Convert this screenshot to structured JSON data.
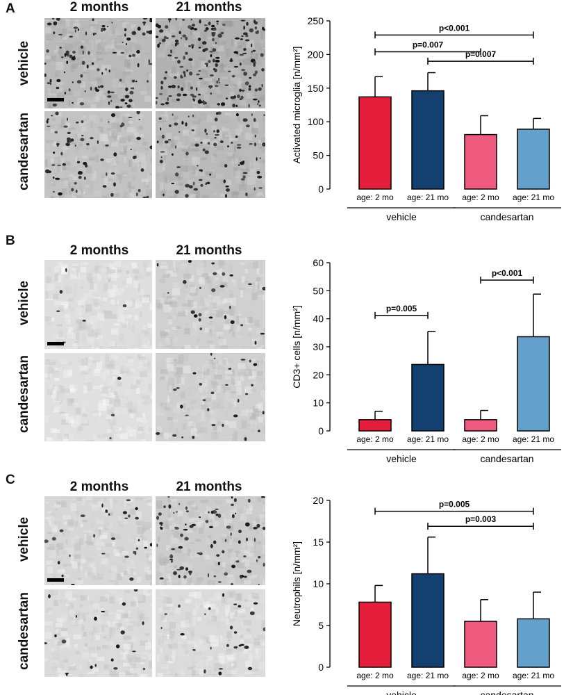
{
  "panels": [
    {
      "letter": "A",
      "col_labels": [
        "2 months",
        "21 months"
      ],
      "row_labels": [
        "vehicle",
        "candesartan"
      ],
      "micro_density": [
        {
          "intensity": 0.55,
          "dots": 110
        },
        {
          "intensity": 0.65,
          "dots": 190
        },
        {
          "intensity": 0.45,
          "dots": 70
        },
        {
          "intensity": 0.55,
          "dots": 90
        }
      ]
    },
    {
      "letter": "B",
      "col_labels": [
        "2 months",
        "21 months"
      ],
      "row_labels": [
        "vehicle",
        "candesartan"
      ],
      "micro_density": [
        {
          "intensity": 0.15,
          "dots": 6
        },
        {
          "intensity": 0.3,
          "dots": 25
        },
        {
          "intensity": 0.12,
          "dots": 3
        },
        {
          "intensity": 0.3,
          "dots": 30
        }
      ]
    },
    {
      "letter": "C",
      "col_labels": [
        "2 months",
        "21 months"
      ],
      "row_labels": [
        "vehicle",
        "candesartan"
      ],
      "micro_density": [
        {
          "intensity": 0.22,
          "dots": 28
        },
        {
          "intensity": 0.35,
          "dots": 90
        },
        {
          "intensity": 0.18,
          "dots": 20
        },
        {
          "intensity": 0.18,
          "dots": 25
        }
      ]
    }
  ],
  "chart_data": [
    {
      "type": "bar",
      "categories": [
        "age: 2 mo",
        "age: 21 mo",
        "age: 2 mo",
        "age: 21 mo"
      ],
      "groups": [
        {
          "label": "vehicle",
          "members": [
            0,
            1
          ]
        },
        {
          "label": "candesartan",
          "members": [
            2,
            3
          ]
        }
      ],
      "values": [
        137,
        146,
        81,
        89
      ],
      "errors": [
        30,
        27,
        28,
        16
      ],
      "colors": [
        "#e41e3b",
        "#14406f",
        "#ef5b7f",
        "#64a0cc"
      ],
      "ylabel": "Activated microglia [n/mm²]",
      "ylim": [
        0,
        250
      ],
      "yticks": [
        0,
        50,
        100,
        150,
        200,
        250
      ],
      "significance": [
        {
          "from": 0,
          "to": 3,
          "label": "p<0.001",
          "y": 229
        },
        {
          "from": 0,
          "to": 2,
          "label": "p=0.007",
          "y": 204
        },
        {
          "from": 1,
          "to": 3,
          "label": "p=0.007",
          "y": 190
        }
      ]
    },
    {
      "type": "bar",
      "categories": [
        "age: 2 mo",
        "age: 21 mo",
        "age: 2 mo",
        "age: 21 mo"
      ],
      "groups": [
        {
          "label": "vehicle",
          "members": [
            0,
            1
          ]
        },
        {
          "label": "candesartan",
          "members": [
            2,
            3
          ]
        }
      ],
      "values": [
        4,
        23.7,
        4,
        33.6
      ],
      "errors": [
        3,
        11.8,
        3.3,
        15.2
      ],
      "colors": [
        "#e41e3b",
        "#14406f",
        "#ef5b7f",
        "#64a0cc"
      ],
      "ylabel": "CD3+ cells [n/mm²]",
      "ylim": [
        0,
        60
      ],
      "yticks": [
        0,
        10,
        20,
        30,
        40,
        50,
        60
      ],
      "significance": [
        {
          "from": 0,
          "to": 1,
          "label": "p=0.005",
          "y": 41.2
        },
        {
          "from": 2,
          "to": 3,
          "label": "p<0.001",
          "y": 53.8
        }
      ]
    },
    {
      "type": "bar",
      "categories": [
        "age: 2 mo",
        "age: 21 mo",
        "age: 2 mo",
        "age: 21 mo"
      ],
      "groups": [
        {
          "label": "vehicle",
          "members": [
            0,
            1
          ]
        },
        {
          "label": "candesartan",
          "members": [
            2,
            3
          ]
        }
      ],
      "values": [
        7.8,
        11.2,
        5.5,
        5.8
      ],
      "errors": [
        2.0,
        4.4,
        2.6,
        3.2
      ],
      "colors": [
        "#e41e3b",
        "#14406f",
        "#ef5b7f",
        "#64a0cc"
      ],
      "ylabel": "Neutrophils [n/mm²]",
      "ylim": [
        0,
        20
      ],
      "yticks": [
        0,
        5,
        10,
        15,
        20
      ],
      "significance": [
        {
          "from": 0,
          "to": 3,
          "label": "p=0.005",
          "y": 18.7
        },
        {
          "from": 1,
          "to": 3,
          "label": "p=0.003",
          "y": 16.9
        }
      ]
    }
  ]
}
